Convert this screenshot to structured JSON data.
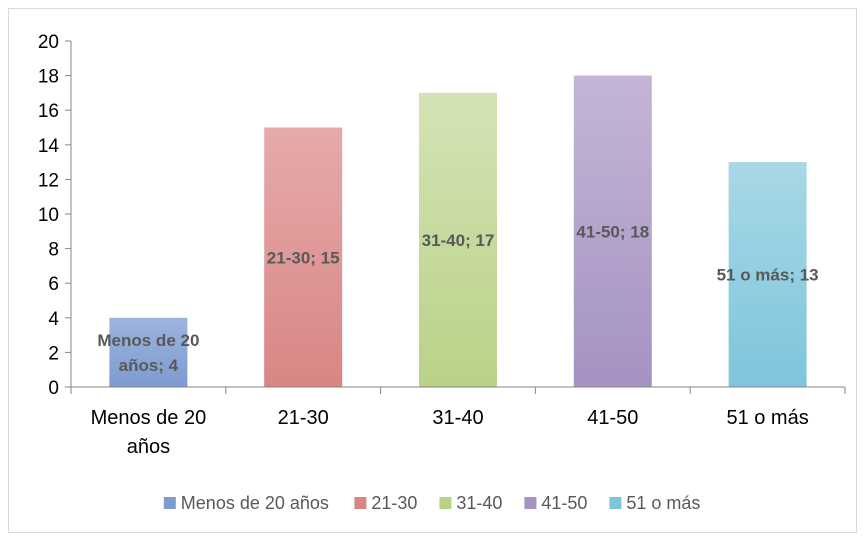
{
  "chart_data": {
    "type": "bar",
    "categories": [
      "Menos de 20 años",
      "21-30",
      "31-40",
      "41-50",
      "51 o más"
    ],
    "category_labels": [
      [
        "Menos de 20",
        "años"
      ],
      [
        "21-30"
      ],
      [
        "31-40"
      ],
      [
        "41-50"
      ],
      [
        "51 o más"
      ]
    ],
    "values": [
      4,
      15,
      17,
      18,
      13
    ],
    "data_labels": [
      [
        "Menos de 20",
        "años; 4"
      ],
      [
        "21-30; 15"
      ],
      [
        "31-40; 17"
      ],
      [
        "41-50; 18"
      ],
      [
        "51 o más; 13"
      ]
    ],
    "yticks": [
      "0",
      "2",
      "4",
      "6",
      "8",
      "10",
      "12",
      "14",
      "16",
      "18",
      "20"
    ],
    "ylim": [
      0,
      20
    ],
    "grid": false,
    "legend_position": "bottom",
    "legend": [
      "Menos de 20 años",
      "21-30",
      "31-40",
      "41-50",
      "51 o más"
    ],
    "colors": [
      {
        "top": "#9db4dc",
        "bottom": "#7e9bd0"
      },
      {
        "top": "#e6aaaa",
        "bottom": "#d98585"
      },
      {
        "top": "#d4e3b5",
        "bottom": "#b9d288"
      },
      {
        "top": "#c4b5d6",
        "bottom": "#a592c2"
      },
      {
        "top": "#a8d8e6",
        "bottom": "#7ec5dc"
      }
    ]
  }
}
